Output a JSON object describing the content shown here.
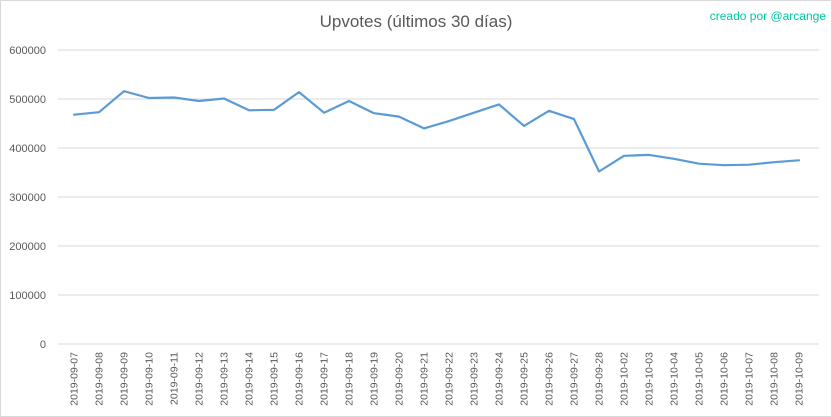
{
  "header": {
    "title": "Upvotes (últimos 30 días)",
    "attribution": "creado por @arcange"
  },
  "colors": {
    "line": "#5b9bd5",
    "grid": "#d9d9d9",
    "axis_text": "#595959",
    "title_text": "#595959",
    "attribution_text": "#00c9a0",
    "background": "#ffffff",
    "border": "#d9d9d9"
  },
  "chart_data": {
    "type": "line",
    "title": "Upvotes (últimos 30 días)",
    "categories": [
      "2019-09-07",
      "2019-09-08",
      "2019-09-09",
      "2019-09-10",
      "2019-09-11",
      "2019-09-12",
      "2019-09-13",
      "2019-09-14",
      "2019-09-15",
      "2019-09-16",
      "2019-09-17",
      "2019-09-18",
      "2019-09-19",
      "2019-09-20",
      "2019-09-21",
      "2019-09-22",
      "2019-09-23",
      "2019-09-24",
      "2019-09-25",
      "2019-09-26",
      "2019-09-27",
      "2019-09-28",
      "2019-10-02",
      "2019-10-03",
      "2019-10-04",
      "2019-10-05",
      "2019-10-06",
      "2019-10-07",
      "2019-10-08",
      "2019-10-09"
    ],
    "values": [
      468000,
      473000,
      516000,
      502000,
      503000,
      496000,
      501000,
      477000,
      478000,
      514000,
      472000,
      496000,
      471000,
      464000,
      440000,
      455000,
      472000,
      489000,
      445000,
      476000,
      459000,
      352000,
      384000,
      386000,
      378000,
      368000,
      365000,
      366000,
      371000,
      375000
    ],
    "xlabel": "",
    "ylabel": "",
    "ylim": [
      0,
      600000
    ],
    "ytick_interval": 100000,
    "ytick_labels": [
      "0",
      "100000",
      "200000",
      "300000",
      "400000",
      "500000",
      "600000"
    ],
    "grid": "horizontal",
    "legend": "none"
  }
}
